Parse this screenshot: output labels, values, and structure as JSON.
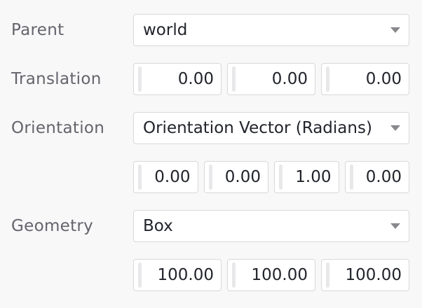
{
  "colors": {
    "page_bg": "#f8f8f8",
    "field_bg": "#ffffff",
    "field_border": "#d8d8da",
    "label_text": "#64646d",
    "value_text": "#22242c",
    "drag_handle": "#e8e8ea",
    "caret": "#88888d"
  },
  "form": {
    "parent": {
      "label": "Parent",
      "selected": "world"
    },
    "translation": {
      "label": "Translation",
      "values": [
        "0.00",
        "0.00",
        "0.00"
      ]
    },
    "orientation": {
      "label": "Orientation",
      "selected": "Orientation Vector (Radians)",
      "values": [
        "0.00",
        "0.00",
        "1.00",
        "0.00"
      ]
    },
    "geometry": {
      "label": "Geometry",
      "selected": "Box",
      "values": [
        "100.00",
        "100.00",
        "100.00"
      ]
    }
  }
}
